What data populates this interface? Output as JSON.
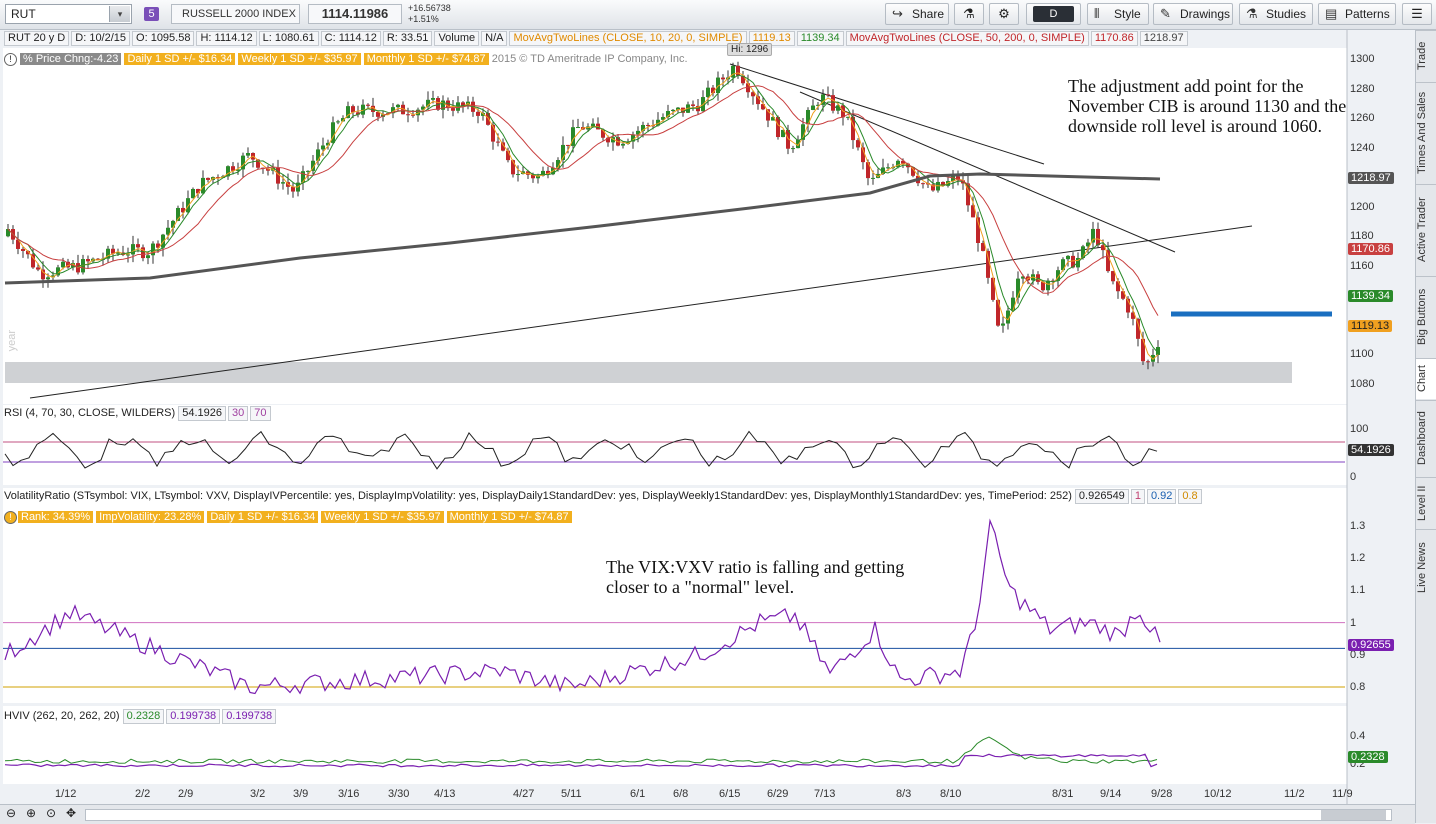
{
  "toolbar": {
    "symbol": "RUT",
    "symbol_dropdown": "▾",
    "group_badge": "5",
    "index_name": "RUSSELL 2000 INDEX",
    "last_price": "1114.11986",
    "net_change": "+16.56738",
    "pct_change": "+1.51%",
    "share_label": "Share",
    "aggregation_label": "D",
    "style_label": "Style",
    "drawings_label": "Drawings",
    "studies_label": "Studies",
    "patterns_label": "Patterns"
  },
  "info_bar": {
    "period": "RUT 20 y D",
    "date": "D: 10/2/15",
    "open": "O: 1095.58",
    "high": "H: 1114.12",
    "low": "L: 1080.61",
    "close": "C: 1114.12",
    "range": "R: 33.51",
    "volume_label": "Volume",
    "volume_value": "N/A",
    "ma1_label": "MovAvgTwoLines (CLOSE, 10, 20, 0, SIMPLE)",
    "ma1_v1": "1119.13",
    "ma1_v2": "1139.34",
    "ma2_label": "MovAvgTwoLines (CLOSE, 50, 200, 0, SIMPLE)",
    "ma2_v1": "1170.86",
    "ma2_v2": "1218.97"
  },
  "price_pane": {
    "pct_change_label": "% Price Chng:-4.23",
    "daily_sd": "Daily 1 SD +/- $16.34",
    "weekly_sd": "Weekly 1 SD +/- $35.97",
    "monthly_sd": "Monthly 1 SD +/- $74.87",
    "copyright": "2015 © TD Ameritrade IP Company, Inc.",
    "high_marker": "Hi: 1296",
    "year_watermark": "year",
    "y_ticks": [
      "1300",
      "1280",
      "1260",
      "1240",
      "1220",
      "1200",
      "1180",
      "1160",
      "1140",
      "1120",
      "1100",
      "1080"
    ],
    "tags": {
      "ma200": "1218.97",
      "ma50": "1170.86",
      "ma20": "1139.34",
      "ma10": "1119.13"
    },
    "annotation": "The adjustment add point for the November CIB is around 1130 and the downside roll level is around 1060."
  },
  "rsi_pane": {
    "label": "RSI (4, 70, 30, CLOSE, WILDERS)",
    "value": "54.1926",
    "os": "30",
    "ob": "70",
    "y_ticks": [
      "100",
      "0"
    ],
    "tag": "54.1926"
  },
  "vol_pane": {
    "label": "VolatilityRatio (STsymbol: VIX, LTsymbol: VXV, DisplayIVPercentile: yes, DisplayImpVolatility: yes, DisplayDaily1StandardDev: yes, DisplayWeekly1StandardDev: yes, DisplayMonthly1StandardDev: yes, TimePeriod: 252)",
    "value": "0.926549",
    "v1": "1",
    "v2": "0.92",
    "v3": "0.8",
    "rank": "Rank: 34.39%",
    "impvol": "ImpVolatility: 23.28%",
    "daily_sd": "Daily 1 SD +/- $16.34",
    "weekly_sd": "Weekly 1 SD +/- $35.97",
    "monthly_sd": "Monthly 1 SD +/- $74.87",
    "y_ticks": [
      "1.3",
      "1.2",
      "1.1",
      "1",
      "0.9",
      "0.8"
    ],
    "tag": "0.92655",
    "annotation": "The VIX:VXV ratio is falling and getting closer to a \"normal\" level."
  },
  "hviv_pane": {
    "label": "HVIV (262, 20, 262, 20)",
    "v1": "0.2328",
    "v2": "0.199738",
    "v3": "0.199738",
    "y_ticks": [
      "0.4",
      "0.2"
    ],
    "tag": "0.2328"
  },
  "x_axis": [
    "1/12",
    "2/2",
    "2/9",
    "3/2",
    "3/9",
    "3/16",
    "3/30",
    "4/13",
    "4/27",
    "5/11",
    "6/1",
    "6/8",
    "6/15",
    "6/29",
    "7/13",
    "8/3",
    "8/10",
    "8/31",
    "9/14",
    "9/28",
    "10/12",
    "11/2",
    "11/9"
  ],
  "right_tabs": [
    "Trade",
    "Times And Sales",
    "Active Trader",
    "Big Buttons",
    "Chart",
    "Dashboard",
    "Level II",
    "Live News"
  ],
  "colors": {
    "up": "#2a8a2a",
    "down": "#c0262a",
    "ma10": "#f0a020",
    "ma20": "#2a8a2a",
    "ma50": "#c84040",
    "ma200": "#555555",
    "vol_line": "#7a1fb0",
    "target_line": "#1a6fc0"
  }
}
